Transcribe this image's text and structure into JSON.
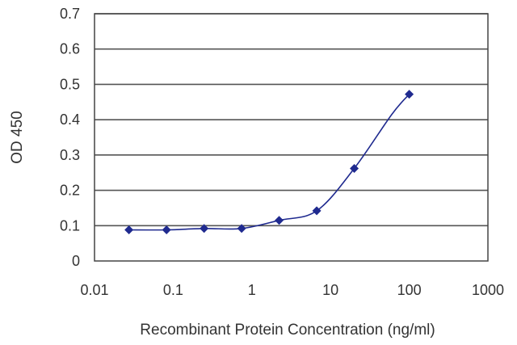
{
  "chart_data": {
    "type": "line",
    "title": "",
    "xlabel": "Recombinant Protein Concentration (ng/ml)",
    "ylabel": "OD 450",
    "x_scale": "log",
    "xlim": [
      0.01,
      1000
    ],
    "ylim": [
      0,
      0.7
    ],
    "x_ticks": [
      0.01,
      0.1,
      1,
      10,
      100,
      1000
    ],
    "x_tick_labels": [
      "0.01",
      "0.1",
      "1",
      "10",
      "100",
      "1000"
    ],
    "y_ticks": [
      0,
      0.1,
      0.2,
      0.3,
      0.4,
      0.5,
      0.6,
      0.7
    ],
    "y_tick_labels": [
      "0",
      "0.1",
      "0.2",
      "0.3",
      "0.4",
      "0.5",
      "0.6",
      "0.7"
    ],
    "grid": "horizontal",
    "legend": "none",
    "series": [
      {
        "x": [
          0.0274,
          0.0823,
          0.247,
          0.741,
          2.22,
          6.67,
          20,
          60,
          100
        ],
        "y": [
          0.088,
          0.088,
          0.092,
          0.092,
          0.115,
          0.142,
          0.262,
          0.415,
          0.472
        ],
        "markers_x": [
          0.0274,
          0.0823,
          0.247,
          0.741,
          2.22,
          6.67,
          20,
          100
        ],
        "markers_y": [
          0.088,
          0.088,
          0.092,
          0.092,
          0.115,
          0.142,
          0.262,
          0.472
        ],
        "color": "#1f2a8f"
      }
    ]
  }
}
